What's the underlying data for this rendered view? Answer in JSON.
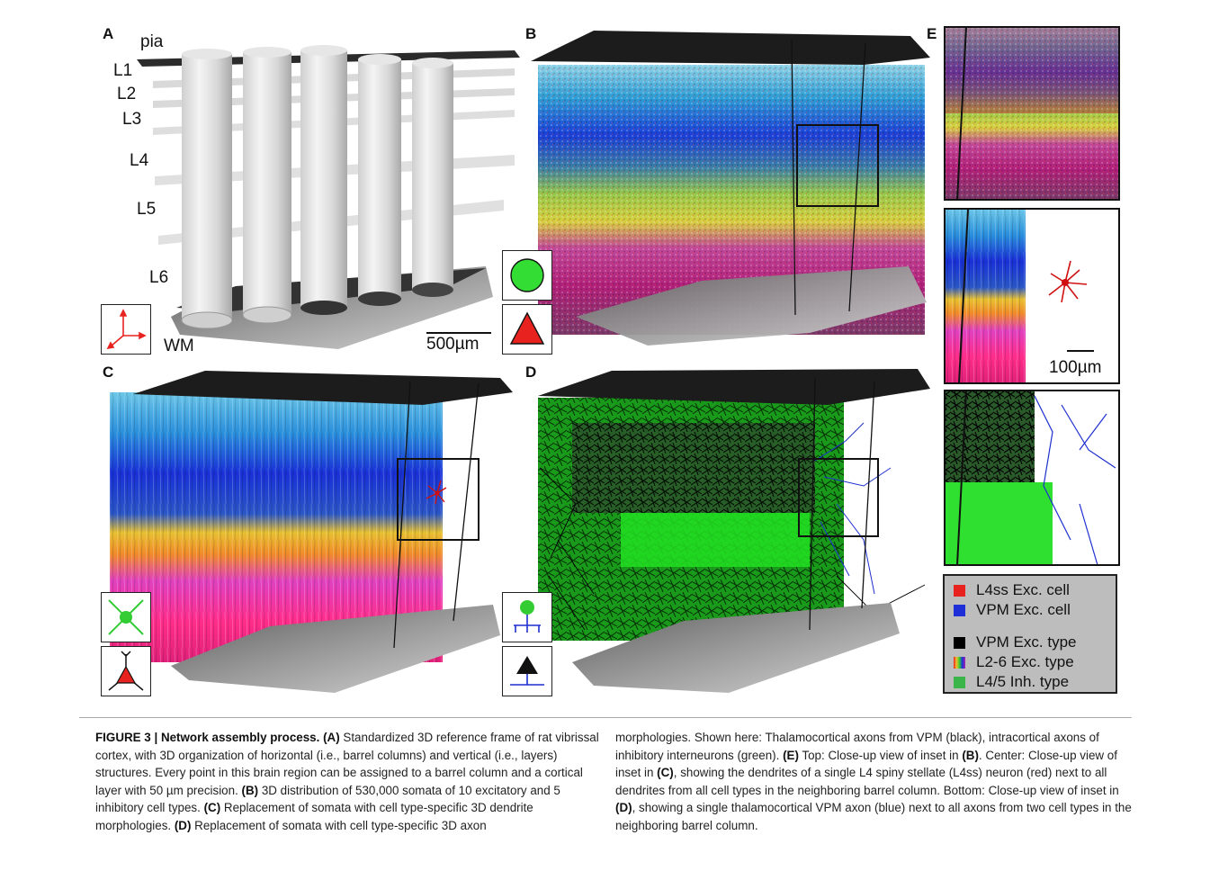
{
  "panels": {
    "a": "A",
    "b": "B",
    "c": "C",
    "d": "D",
    "e": "E"
  },
  "layers": [
    "pia",
    "L1",
    "L2",
    "L3",
    "L4",
    "L5",
    "L6",
    "WM"
  ],
  "scalebars": {
    "main": "500µm",
    "inset": "100µm"
  },
  "legend": {
    "items": [
      {
        "label": "L4ss Exc. cell",
        "color": "#e8231f"
      },
      {
        "label": "VPM Exc. cell",
        "color": "#1f2fd8"
      },
      {
        "label": "VPM Exc. type",
        "color": "#000000"
      },
      {
        "label": "L2-6 Exc. type",
        "color": "multicolor"
      },
      {
        "label": "L4/5 Inh. type",
        "color": "#39b54a"
      }
    ]
  },
  "caption": {
    "label": "FIGURE 3 | Network assembly process.",
    "a_tag": "(A)",
    "a_text": " Standardized 3D reference frame of rat vibrissal cortex, with 3D organization of horizontal (i.e., barrel columns) and vertical (i.e., layers) structures. Every point in this brain region can be assigned to a barrel column and a cortical layer with 50 µm precision. ",
    "b_tag": "(B)",
    "b_text": " 3D distribution of 530,000 somata of 10 excitatory and 5 inhibitory cell types. ",
    "c_tag": "(C)",
    "c_text": " Replacement of somata with cell type-specific 3D dendrite morphologies. ",
    "d_tag": "(D)",
    "d_text": " Replacement of somata with cell type-specific 3D axon",
    "right_1": "morphologies. Shown here: Thalamocortical axons from VPM (black), intracortical axons of inhibitory interneurons (green). ",
    "e_tag": "(E)",
    "right_2": " Top: Close-up view of inset in ",
    "e_b": "(B)",
    "right_3": ". Center: Close-up view of inset in ",
    "e_c": "(C)",
    "right_4": ", showing the dendrites of a single L4 spiny stellate (L4ss) neuron (red) next to all dendrites from all cell types in the neighboring barrel column. Bottom: Close-up view of inset in ",
    "e_d": "(D)",
    "right_5": ", showing a single thalamocortical VPM axon (blue) next to all axons from two cell types in the neighboring barrel column."
  }
}
